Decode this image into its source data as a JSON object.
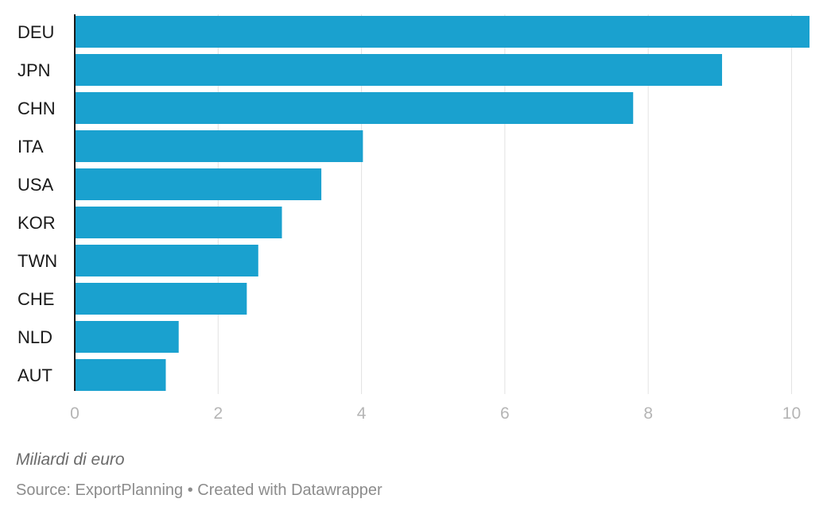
{
  "chart_data": {
    "type": "bar",
    "orientation": "horizontal",
    "categories": [
      "DEU",
      "JPN",
      "CHN",
      "ITA",
      "USA",
      "KOR",
      "TWN",
      "CHE",
      "NLD",
      "AUT"
    ],
    "values": [
      10.25,
      9.03,
      7.79,
      4.02,
      3.44,
      2.89,
      2.56,
      2.4,
      1.45,
      1.27
    ],
    "xlim": [
      0,
      10.25
    ],
    "xticks": [
      0,
      2,
      4,
      6,
      8,
      10
    ],
    "grid": true,
    "bar_color": "#1aa1cf",
    "note": "Miliardi di euro"
  },
  "footer": {
    "source": "Source: ExportPlanning",
    "separator": "•",
    "credit": "Created with Datawrapper"
  }
}
